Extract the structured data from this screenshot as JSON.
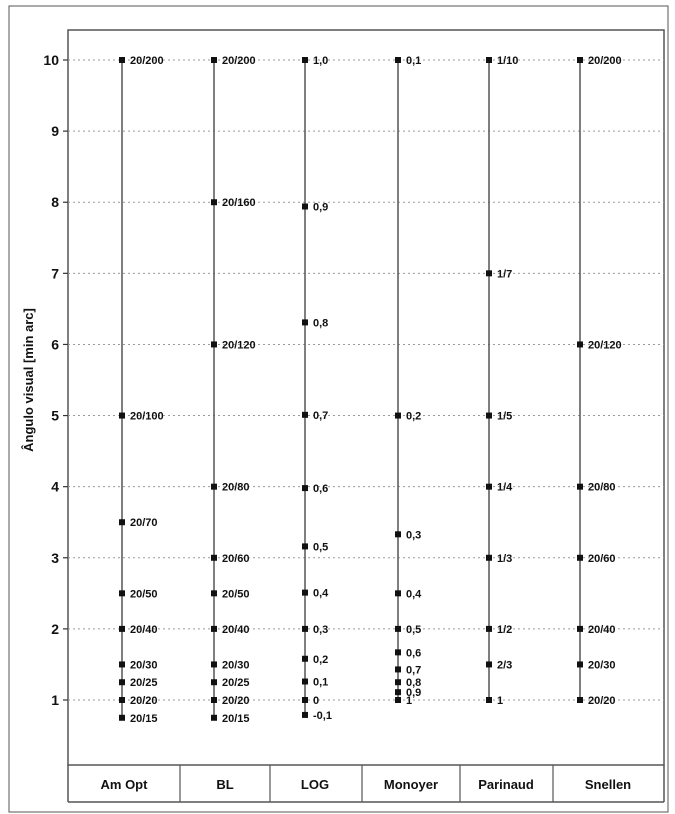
{
  "chart_data": {
    "type": "scatter",
    "ylabel": "Ângulo visual [min arc]",
    "xlabel": "",
    "ylim": [
      1,
      10
    ],
    "yticks": [
      1,
      2,
      3,
      4,
      5,
      6,
      7,
      8,
      9,
      10
    ],
    "grid": true,
    "categories": [
      "Am Opt",
      "BL",
      "LOG",
      "Monoyer",
      "Parinaud",
      "Snellen"
    ],
    "series": [
      {
        "name": "Am Opt",
        "points": [
          {
            "y": 10,
            "label": "20/200"
          },
          {
            "y": 5,
            "label": "20/100"
          },
          {
            "y": 3.5,
            "label": "20/70"
          },
          {
            "y": 2.5,
            "label": "20/50"
          },
          {
            "y": 2,
            "label": "20/40"
          },
          {
            "y": 1.5,
            "label": "20/30"
          },
          {
            "y": 1.25,
            "label": "20/25"
          },
          {
            "y": 1,
            "label": "20/20"
          },
          {
            "y": 0.75,
            "label": "20/15"
          }
        ]
      },
      {
        "name": "BL",
        "points": [
          {
            "y": 10,
            "label": "20/200"
          },
          {
            "y": 8,
            "label": "20/160"
          },
          {
            "y": 6,
            "label": "20/120"
          },
          {
            "y": 4,
            "label": "20/80"
          },
          {
            "y": 3,
            "label": "20/60"
          },
          {
            "y": 2.5,
            "label": "20/50"
          },
          {
            "y": 2,
            "label": "20/40"
          },
          {
            "y": 1.5,
            "label": "20/30"
          },
          {
            "y": 1.25,
            "label": "20/25"
          },
          {
            "y": 1,
            "label": "20/20"
          },
          {
            "y": 0.75,
            "label": "20/15"
          }
        ]
      },
      {
        "name": "LOG",
        "points": [
          {
            "y": 10,
            "label": "1,0"
          },
          {
            "y": 7.94,
            "label": "0,9"
          },
          {
            "y": 6.31,
            "label": "0,8"
          },
          {
            "y": 5.01,
            "label": "0,7"
          },
          {
            "y": 3.98,
            "label": "0,6"
          },
          {
            "y": 3.16,
            "label": "0,5"
          },
          {
            "y": 2.51,
            "label": "0,4"
          },
          {
            "y": 2.0,
            "label": "0,3"
          },
          {
            "y": 1.58,
            "label": "0,2"
          },
          {
            "y": 1.26,
            "label": "0,1"
          },
          {
            "y": 1.0,
            "label": "0"
          },
          {
            "y": 0.79,
            "label": "-0,1"
          }
        ]
      },
      {
        "name": "Monoyer",
        "points": [
          {
            "y": 10,
            "label": "0,1"
          },
          {
            "y": 5,
            "label": "0,2"
          },
          {
            "y": 3.33,
            "label": "0,3"
          },
          {
            "y": 2.5,
            "label": "0,4"
          },
          {
            "y": 2,
            "label": "0,5"
          },
          {
            "y": 1.67,
            "label": "0,6"
          },
          {
            "y": 1.43,
            "label": "0,7"
          },
          {
            "y": 1.25,
            "label": "0,8"
          },
          {
            "y": 1.11,
            "label": "0,9"
          },
          {
            "y": 1,
            "label": "1"
          }
        ]
      },
      {
        "name": "Parinaud",
        "points": [
          {
            "y": 10,
            "label": "1/10"
          },
          {
            "y": 7,
            "label": "1/7"
          },
          {
            "y": 5,
            "label": "1/5"
          },
          {
            "y": 4,
            "label": "1/4"
          },
          {
            "y": 3,
            "label": "1/3"
          },
          {
            "y": 2,
            "label": "1/2"
          },
          {
            "y": 1.5,
            "label": "2/3"
          },
          {
            "y": 1,
            "label": "1"
          }
        ]
      },
      {
        "name": "Snellen",
        "points": [
          {
            "y": 10,
            "label": "20/200"
          },
          {
            "y": 6,
            "label": "20/120"
          },
          {
            "y": 4,
            "label": "20/80"
          },
          {
            "y": 3,
            "label": "20/60"
          },
          {
            "y": 2,
            "label": "20/40"
          },
          {
            "y": 1.5,
            "label": "20/30"
          },
          {
            "y": 1,
            "label": "20/20"
          }
        ]
      }
    ]
  },
  "colors": {
    "line": "#555555",
    "grid": "#9a9a9a",
    "point": "#111111",
    "frame": "#555555"
  }
}
